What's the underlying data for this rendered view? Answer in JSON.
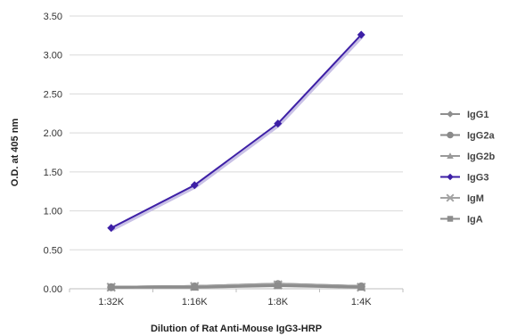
{
  "chart_data": {
    "type": "line",
    "categories": [
      "1:32K",
      "1:16K",
      "1:8K",
      "1:4K"
    ],
    "xlabel": "Dilution of Rat Anti-Mouse IgG3-HRP",
    "ylabel": "O.D. at 405 nm",
    "ylim": [
      0,
      3.5
    ],
    "yticks": [
      "0.00",
      "0.50",
      "1.00",
      "1.50",
      "2.00",
      "2.50",
      "3.00",
      "3.50"
    ],
    "grid": true,
    "legend_position": "right",
    "series": [
      {
        "name": "IgG1",
        "values": [
          0.02,
          0.03,
          0.05,
          0.03
        ],
        "color": "#8e8e8e",
        "marker": "diamond"
      },
      {
        "name": "IgG2a",
        "values": [
          0.02,
          0.03,
          0.06,
          0.03
        ],
        "color": "#8a8a8a",
        "marker": "circle"
      },
      {
        "name": "IgG2b",
        "values": [
          0.02,
          0.03,
          0.06,
          0.03
        ],
        "color": "#999999",
        "marker": "triangle"
      },
      {
        "name": "IgG3",
        "values": [
          0.78,
          1.33,
          2.12,
          3.26
        ],
        "color": "#3d1fa6",
        "marker": "diamond"
      },
      {
        "name": "IgM",
        "values": [
          0.02,
          0.03,
          0.05,
          0.02
        ],
        "color": "#a3a3a3",
        "marker": "x"
      },
      {
        "name": "IgA",
        "values": [
          0.02,
          0.02,
          0.04,
          0.02
        ],
        "color": "#8c8c8c",
        "marker": "square"
      }
    ]
  }
}
